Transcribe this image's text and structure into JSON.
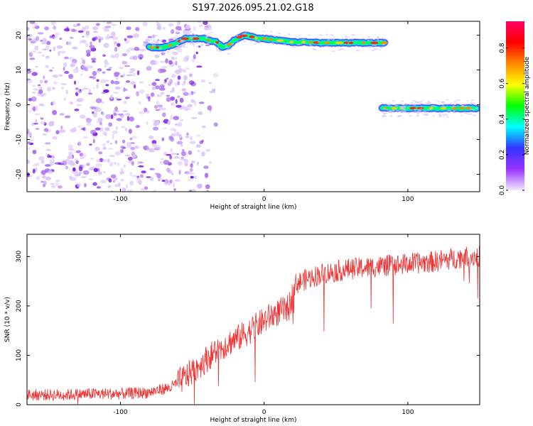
{
  "title": "S197.2026.095.21.02.G18",
  "chart_data": [
    {
      "type": "heatmap",
      "xlabel": "Height of straight line (km)",
      "ylabel": "Frequency (Hz)",
      "xlim": [
        -165,
        150
      ],
      "ylim": [
        -25,
        24
      ],
      "xticks": [
        -100,
        0,
        100
      ],
      "yticks": [
        -20,
        -10,
        0,
        10,
        20
      ],
      "xtick_labels": [
        "-100",
        "0",
        "100"
      ],
      "ytick_labels": [
        "-20",
        "-10",
        "0",
        "10",
        "20"
      ],
      "colorbar": {
        "label": "Normalized spectral amplitude",
        "range": [
          0,
          0.95
        ],
        "ticks": [
          0.0,
          0.2,
          0.4,
          0.6,
          0.8
        ],
        "tick_labels": [
          "0.0",
          "0.2",
          "0.4",
          "0.6",
          "0.8"
        ],
        "colors": [
          "#f0e8ff",
          "#9933ff",
          "#3333ff",
          "#00ffff",
          "#00ff00",
          "#ffff00",
          "#ff8800",
          "#ff0000",
          "#ff0066"
        ]
      },
      "noise_region": {
        "x_range": [
          -165,
          -55
        ],
        "amplitude": 0.15
      },
      "ridges": [
        {
          "x": [
            -80,
            -70,
            -62,
            -55,
            -48,
            -42,
            -38,
            -33,
            -29,
            -25,
            -21,
            -17,
            -13,
            -8,
            -4,
            0,
            10,
            20,
            30,
            40,
            50,
            60,
            70,
            84
          ],
          "y": [
            16.5,
            16.5,
            17.5,
            19,
            19,
            19,
            18.5,
            18,
            16.5,
            17,
            18.5,
            19.5,
            20,
            19.5,
            19,
            19,
            18.5,
            18,
            18,
            17.8,
            17.8,
            17.8,
            17.8,
            17.8
          ],
          "amplitude": 0.9
        },
        {
          "x": [
            82,
            100,
            120,
            140,
            148
          ],
          "y": [
            -1,
            -1,
            -1,
            -1,
            -1
          ],
          "amplitude": 0.85
        }
      ]
    },
    {
      "type": "line",
      "xlabel": "Height of straight line (km)",
      "ylabel": "SNR (10 * v/v)",
      "xlim": [
        -165,
        150
      ],
      "ylim": [
        0,
        345
      ],
      "xticks": [
        -100,
        0,
        100
      ],
      "yticks": [
        0,
        100,
        200,
        300
      ],
      "xtick_labels": [
        "-100",
        "0",
        "100"
      ],
      "ytick_labels": [
        "0",
        "100",
        "200",
        "300"
      ],
      "color": "#ee3333",
      "trend": {
        "x": [
          -165,
          -140,
          -120,
          -100,
          -80,
          -65,
          -55,
          -45,
          -35,
          -25,
          -15,
          -5,
          5,
          12,
          17,
          22,
          30,
          40,
          50,
          60,
          80,
          100,
          120,
          140,
          150
        ],
        "y": [
          20,
          20,
          22,
          22,
          25,
          35,
          55,
          80,
          105,
          125,
          140,
          160,
          180,
          190,
          195,
          245,
          255,
          265,
          270,
          275,
          280,
          285,
          290,
          300,
          300
        ]
      }
    }
  ]
}
